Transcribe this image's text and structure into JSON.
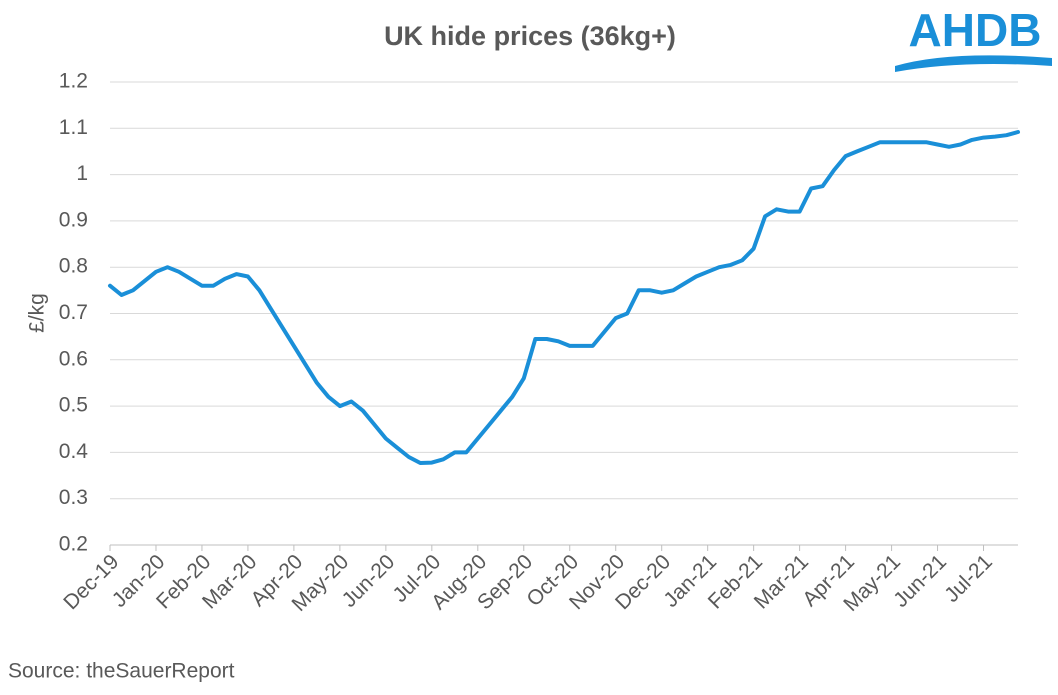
{
  "chart_data": {
    "type": "line",
    "title": "UK hide prices (36kg+)",
    "y_label": "£/kg",
    "source": "Source: theSauerReport",
    "logo": "AHDB",
    "categories": [
      "Dec-19",
      null,
      null,
      null,
      "Jan-20",
      null,
      null,
      null,
      "Feb-20",
      null,
      null,
      null,
      "Mar-20",
      null,
      null,
      null,
      "Apr-20",
      null,
      null,
      null,
      "May-20",
      null,
      null,
      null,
      "Jun-20",
      null,
      null,
      null,
      "Jul-20",
      null,
      null,
      null,
      "Aug-20",
      null,
      null,
      null,
      "Sep-20",
      null,
      null,
      null,
      "Oct-20",
      null,
      null,
      null,
      "Nov-20",
      null,
      null,
      null,
      "Dec-20",
      null,
      null,
      null,
      "Jan-21",
      null,
      null,
      null,
      "Feb-21",
      null,
      null,
      null,
      "Mar-21",
      null,
      null,
      null,
      "Apr-21",
      null,
      null,
      null,
      "May-21",
      null,
      null,
      null,
      "Jun-21",
      null,
      null,
      null,
      "Jul-21",
      null,
      null,
      null
    ],
    "series": [
      {
        "name": "UK hide prices",
        "color": "#1a8fd8",
        "values": [
          0.76,
          0.74,
          0.75,
          0.77,
          0.79,
          0.8,
          0.79,
          0.775,
          0.76,
          0.76,
          0.775,
          0.785,
          0.78,
          0.75,
          0.71,
          0.67,
          0.63,
          0.59,
          0.55,
          0.52,
          0.5,
          0.51,
          0.49,
          0.46,
          0.43,
          0.41,
          0.39,
          0.377,
          0.378,
          0.385,
          0.4,
          0.4,
          0.43,
          0.46,
          0.49,
          0.52,
          0.56,
          0.645,
          0.645,
          0.64,
          0.63,
          0.63,
          0.63,
          0.66,
          0.69,
          0.7,
          0.75,
          0.75,
          0.745,
          0.75,
          0.765,
          0.78,
          0.79,
          0.8,
          0.805,
          0.815,
          0.84,
          0.91,
          0.925,
          0.92,
          0.92,
          0.97,
          0.975,
          1.01,
          1.04,
          1.05,
          1.06,
          1.07,
          1.07,
          1.07,
          1.07,
          1.07,
          1.065,
          1.06,
          1.065,
          1.075,
          1.08,
          1.082,
          1.085,
          1.092
        ]
      }
    ],
    "ylim": [
      0.2,
      1.2
    ],
    "yticks": [
      0.2,
      0.3,
      0.4,
      0.5,
      0.6,
      0.7,
      0.8,
      0.9,
      1,
      1.1,
      1.2
    ],
    "grid": true
  }
}
